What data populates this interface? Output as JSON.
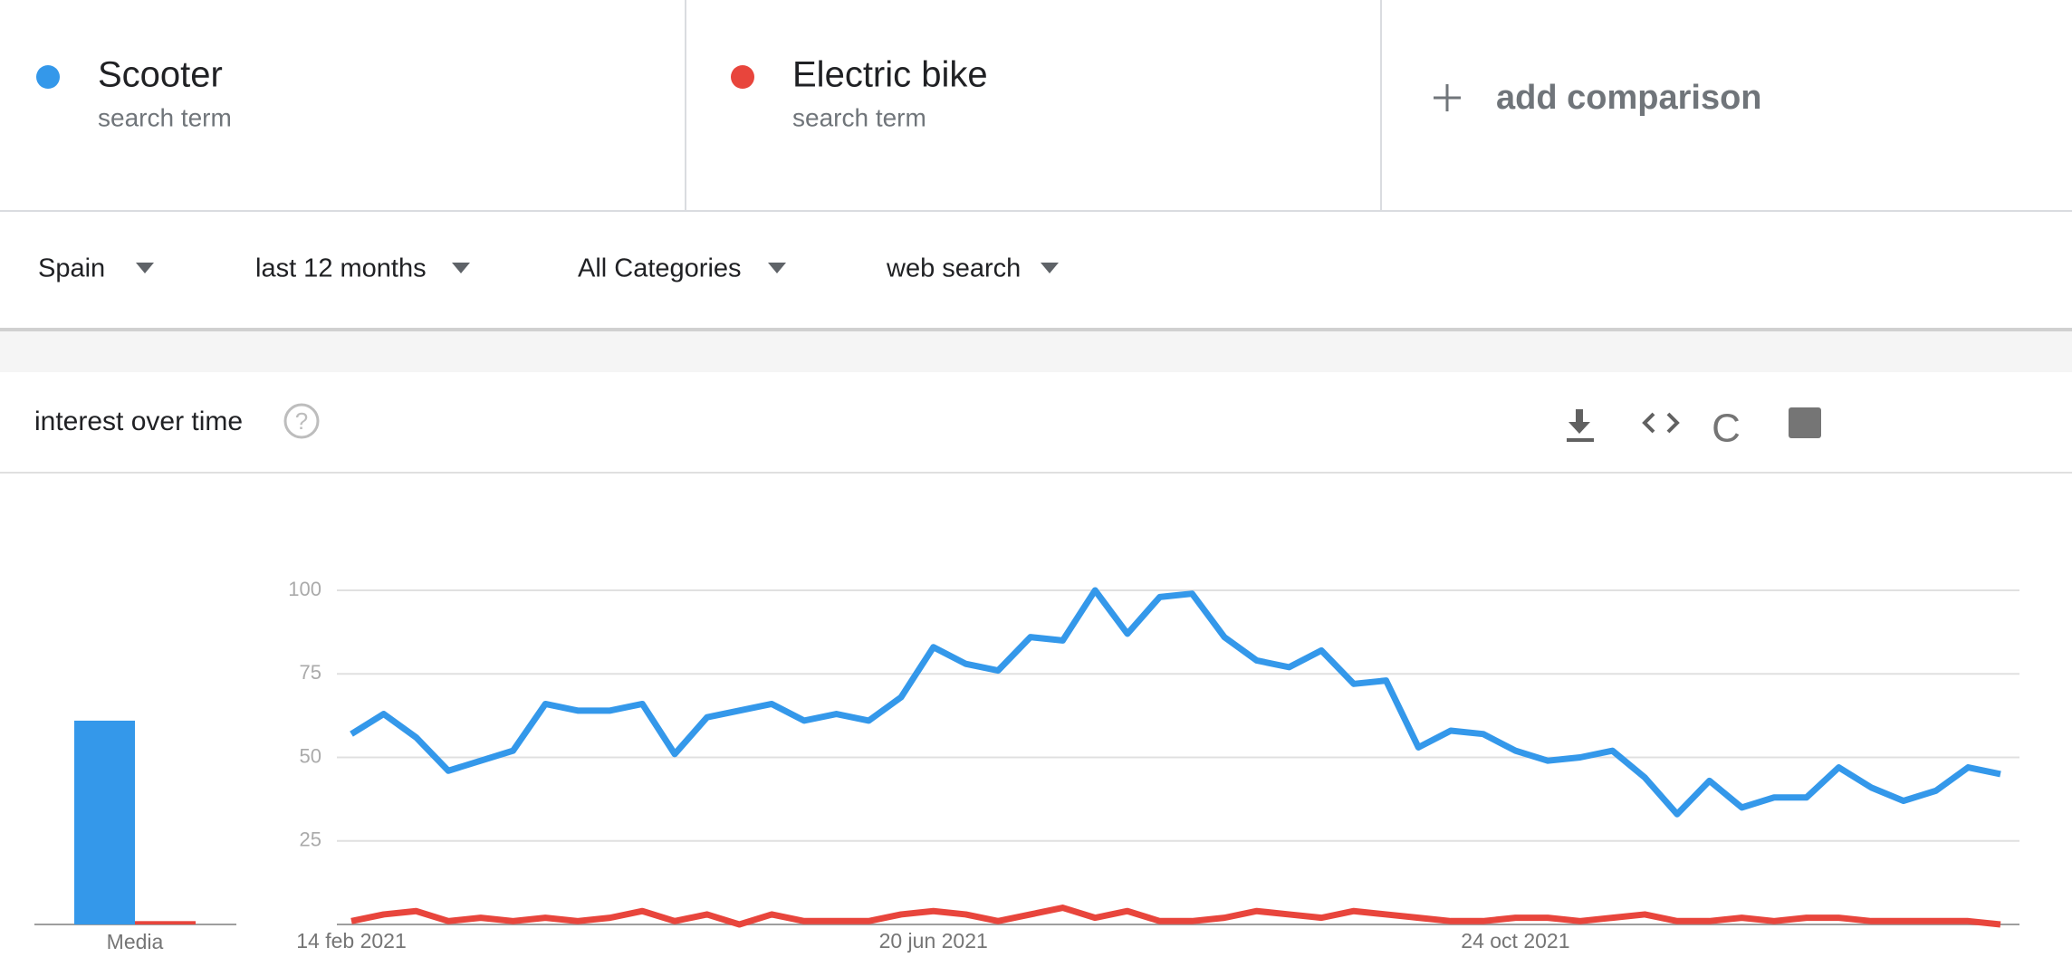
{
  "comparison": [
    {
      "subtitle": "search term"
    },
    {
      "subtitle": "search term"
    }
  ],
  "add_comparison": "add comparison",
  "filters": [
    "Spain",
    "last 12 months",
    "All Categories",
    "web search"
  ],
  "card_title": "interest over time",
  "toolbar_glyph": "C",
  "chart_data": {
    "type": "line",
    "categories": [
      "14 feb 2021",
      null,
      null,
      null,
      null,
      null,
      null,
      null,
      null,
      null,
      null,
      null,
      null,
      null,
      null,
      null,
      null,
      null,
      "20 jun 2021",
      null,
      null,
      null,
      null,
      null,
      null,
      null,
      null,
      null,
      null,
      null,
      null,
      null,
      null,
      null,
      null,
      null,
      "24 oct 2021",
      null,
      null,
      null,
      null,
      null,
      null,
      null,
      null,
      null,
      null,
      null,
      null,
      null,
      null,
      null
    ],
    "series": [
      {
        "name": "Scooter",
        "color": "#3498ea",
        "values": [
          57,
          63,
          56,
          46,
          49,
          52,
          66,
          64,
          64,
          66,
          51,
          62,
          64,
          66,
          61,
          63,
          61,
          68,
          83,
          78,
          76,
          86,
          85,
          100,
          87,
          98,
          99,
          86,
          79,
          77,
          82,
          72,
          73,
          53,
          58,
          57,
          52,
          49,
          50,
          52,
          44,
          33,
          43,
          35,
          38,
          38,
          47,
          41,
          37,
          40,
          47,
          45
        ]
      },
      {
        "name": "Electric bike",
        "color": "#e8453c",
        "values": [
          1,
          3,
          4,
          1,
          2,
          1,
          2,
          1,
          2,
          4,
          1,
          3,
          0,
          3,
          1,
          1,
          1,
          3,
          4,
          3,
          1,
          3,
          5,
          2,
          4,
          1,
          1,
          2,
          4,
          3,
          2,
          4,
          3,
          2,
          1,
          1,
          2,
          2,
          1,
          2,
          3,
          1,
          1,
          2,
          1,
          2,
          2,
          1,
          1,
          1,
          1,
          0
        ]
      }
    ],
    "ylim": [
      0,
      100
    ],
    "yticks": [
      25,
      50,
      75,
      100
    ],
    "grid": true,
    "average": {
      "label": "Media",
      "values": [
        61,
        1
      ]
    }
  }
}
